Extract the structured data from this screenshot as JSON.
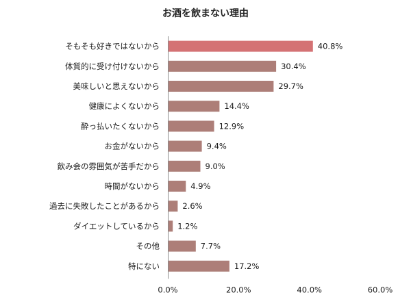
{
  "chart_data": {
    "type": "bar",
    "orientation": "horizontal",
    "title": "お酒を飲まない理由",
    "categories": [
      "そもそも好きではないから",
      "体質的に受け付けないから",
      "美味しいと思えないから",
      "健康によくないから",
      "酔っ払いたくないから",
      "お金がないから",
      "飲み会の雰囲気が苦手だから",
      "時間がないから",
      "過去に失敗したことがあるから",
      "ダイエットしているから",
      "その他",
      "特にない"
    ],
    "values": [
      40.8,
      30.4,
      29.7,
      14.4,
      12.9,
      9.4,
      9.0,
      4.9,
      2.6,
      1.2,
      7.7,
      17.2
    ],
    "data_labels": [
      "40.8%",
      "30.4%",
      "29.7%",
      "14.4%",
      "12.9%",
      "9.4%",
      "9.0%",
      "4.9%",
      "2.6%",
      "1.2%",
      "7.7%",
      "17.2%"
    ],
    "xlim": [
      0,
      60
    ],
    "x_ticks": [
      0,
      20,
      40,
      60
    ],
    "x_tick_labels": [
      "0.0%",
      "20.0%",
      "40.0%",
      "60.0%"
    ],
    "xlabel": "",
    "ylabel": "",
    "grid": false,
    "legend": "none",
    "colors": {
      "highlight": "#d47274",
      "bar": "#ad7e78",
      "axis": "#8c8c8c"
    },
    "highlight_index": 0
  }
}
